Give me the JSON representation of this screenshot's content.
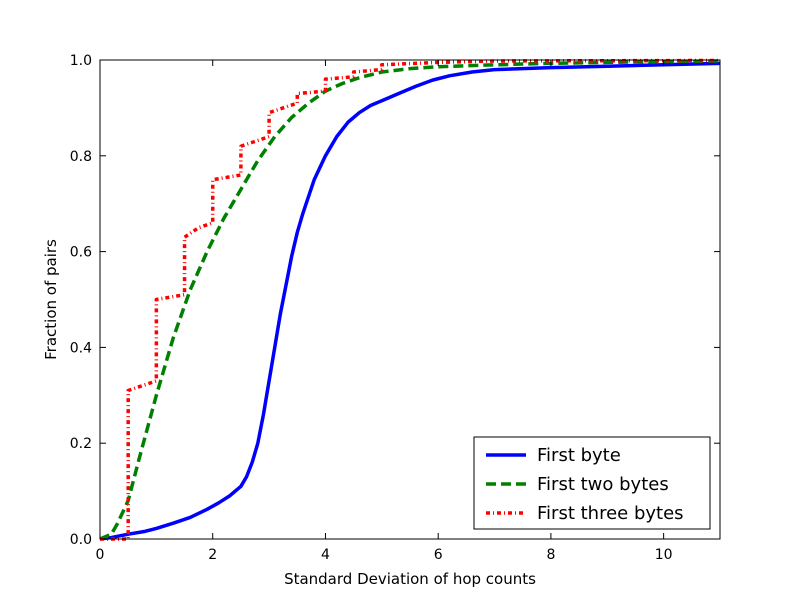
{
  "chart_data": {
    "type": "line",
    "title": "",
    "xlabel": "Standard Deviation of hop counts",
    "ylabel": "Fraction of pairs",
    "xlim": [
      0,
      11
    ],
    "ylim": [
      0,
      1.0
    ],
    "xticks": [
      0,
      2,
      4,
      6,
      8,
      10
    ],
    "xtick_labels": [
      "0",
      "2",
      "4",
      "6",
      "8",
      "10"
    ],
    "yticks": [
      0,
      0.2,
      0.4,
      0.6,
      0.8,
      1.0
    ],
    "ytick_labels": [
      "0.0",
      "0.2",
      "0.4",
      "0.6",
      "0.8",
      "1.0"
    ],
    "grid": false,
    "legend_position": "lower-right",
    "series": [
      {
        "name": "First byte",
        "color": "#0000ff",
        "style": "solid",
        "x": [
          0,
          0.2,
          0.5,
          0.8,
          1.0,
          1.3,
          1.6,
          1.9,
          2.1,
          2.3,
          2.5,
          2.6,
          2.7,
          2.8,
          2.9,
          3.0,
          3.1,
          3.2,
          3.3,
          3.4,
          3.5,
          3.6,
          3.8,
          4.0,
          4.2,
          4.4,
          4.6,
          4.8,
          5.0,
          5.3,
          5.6,
          5.9,
          6.2,
          6.6,
          7.0,
          8.0,
          9.0,
          10.0,
          11.0
        ],
        "y": [
          0.0,
          0.003,
          0.01,
          0.016,
          0.022,
          0.033,
          0.045,
          0.062,
          0.075,
          0.09,
          0.11,
          0.13,
          0.16,
          0.2,
          0.26,
          0.33,
          0.4,
          0.47,
          0.53,
          0.59,
          0.64,
          0.68,
          0.75,
          0.8,
          0.84,
          0.87,
          0.89,
          0.905,
          0.915,
          0.93,
          0.945,
          0.958,
          0.967,
          0.975,
          0.98,
          0.984,
          0.987,
          0.99,
          0.993
        ]
      },
      {
        "name": "First two bytes",
        "color": "#008000",
        "style": "dashed",
        "x": [
          0,
          0.2,
          0.3,
          0.5,
          0.7,
          1.0,
          1.3,
          1.6,
          1.9,
          2.2,
          2.5,
          2.8,
          3.1,
          3.4,
          3.7,
          4.0,
          4.3,
          4.6,
          5.0,
          5.5,
          6.0,
          7.0,
          8.0,
          9.0,
          10.0,
          11.0
        ],
        "y": [
          0.0,
          0.01,
          0.03,
          0.08,
          0.17,
          0.3,
          0.42,
          0.52,
          0.6,
          0.67,
          0.73,
          0.79,
          0.84,
          0.88,
          0.91,
          0.935,
          0.951,
          0.963,
          0.975,
          0.982,
          0.986,
          0.99,
          0.993,
          0.995,
          0.997,
          0.998
        ]
      },
      {
        "name": "First three bytes",
        "color": "#ff0000",
        "style": "dashdot",
        "step": true,
        "x": [
          0,
          0.3,
          0.5,
          0.5,
          0.75,
          1.0,
          1.0,
          1.5,
          1.5,
          1.75,
          2.0,
          2.0,
          2.5,
          2.5,
          3.0,
          3.0,
          3.5,
          3.5,
          4.0,
          4.0,
          4.5,
          4.5,
          5.0,
          5.0,
          6.0,
          7.0,
          11.0
        ],
        "y": [
          0.0,
          0.0,
          0.0,
          0.31,
          0.32,
          0.33,
          0.5,
          0.51,
          0.63,
          0.65,
          0.66,
          0.75,
          0.76,
          0.82,
          0.84,
          0.89,
          0.91,
          0.93,
          0.935,
          0.96,
          0.965,
          0.975,
          0.98,
          0.99,
          0.995,
          0.998,
          0.999
        ]
      }
    ]
  }
}
